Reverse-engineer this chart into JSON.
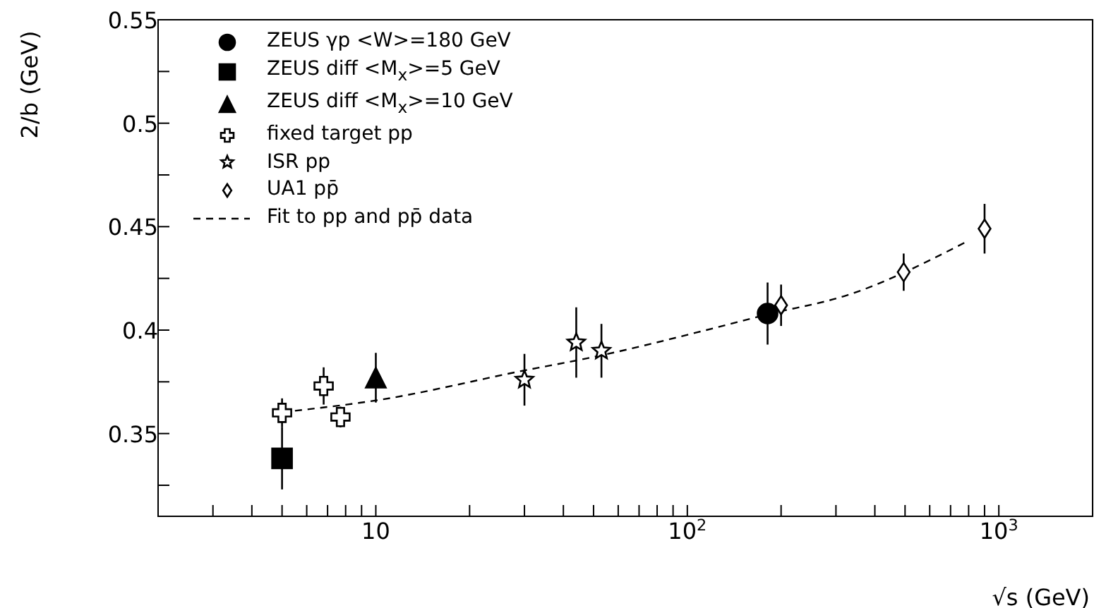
{
  "chart_data": {
    "type": "scatter",
    "xlabel": "√s (GeV)",
    "ylabel": "2/b (GeV)",
    "log": "x",
    "xlim": [
      2,
      2000
    ],
    "ylim": [
      0.31,
      0.55
    ],
    "xticks": [
      {
        "value": 2,
        "label": null
      },
      {
        "value": 3,
        "label": null
      },
      {
        "value": 4,
        "label": null
      },
      {
        "value": 5,
        "label": null
      },
      {
        "value": 6,
        "label": null
      },
      {
        "value": 7,
        "label": null
      },
      {
        "value": 8,
        "label": null
      },
      {
        "value": 9,
        "label": null
      },
      10,
      {
        "value": 20,
        "label": null
      },
      {
        "value": 30,
        "label": null
      },
      {
        "value": 40,
        "label": null
      },
      {
        "value": 50,
        "label": null
      },
      {
        "value": 60,
        "label": null
      },
      {
        "value": 70,
        "label": null
      },
      {
        "value": 80,
        "label": null
      },
      {
        "value": 90,
        "label": null
      },
      {
        "value": 100,
        "label": "10$^{2}$"
      },
      {
        "value": 200,
        "label": null
      },
      {
        "value": 300,
        "label": null
      },
      {
        "value": 400,
        "label": null
      },
      {
        "value": 500,
        "label": null
      },
      {
        "value": 600,
        "label": null
      },
      {
        "value": 700,
        "label": null
      },
      {
        "value": 800,
        "label": null
      },
      {
        "value": 900,
        "label": null
      },
      {
        "value": 1000,
        "label": "10$^{3}$"
      }
    ],
    "yticks": [
      {
        "value": 0.325,
        "label": null
      },
      0.35,
      {
        "value": 0.375,
        "label": null
      },
      0.4,
      {
        "value": 0.425,
        "label": null
      },
      0.45,
      {
        "value": 0.475,
        "label": null
      },
      0.5,
      {
        "value": 0.525,
        "label": null
      },
      0.55
    ],
    "legend": "top left",
    "series": [
      {
        "name": "ZEUS γp <W>=180 GeV",
        "color": "#000000",
        "marker": "circle",
        "x": [
          181
        ],
        "values": [
          0.408
        ],
        "errors": [
          0.015
        ]
      },
      {
        "name": "ZEUS diff <M$_{x}$>=5 GeV",
        "color": "#000000",
        "marker": "square",
        "x": [
          5
        ],
        "values": [
          0.338
        ],
        "errors": [
          0.015
        ]
      },
      {
        "name": "ZEUS diff <M$_{x}$>=10 GeV",
        "color": "#000000",
        "marker": "triangle",
        "x": [
          10
        ],
        "values": [
          0.377
        ],
        "errors": [
          0.012
        ]
      },
      {
        "name": "fixed target pp",
        "color": "#ffffff",
        "marker": "cross",
        "x": [
          5,
          6.8,
          7.7
        ],
        "values": [
          0.36,
          0.373,
          0.358
        ],
        "errors": [
          0.007,
          0.009,
          0.005
        ]
      },
      {
        "name": "ISR pp",
        "color": "#ffffff",
        "marker": "star",
        "x": [
          30,
          44,
          53
        ],
        "values": [
          0.376,
          0.394,
          0.39
        ],
        "errors": [
          0.0125,
          0.017,
          0.013
        ]
      },
      {
        "name": "UA1 pp̄",
        "color": "#ffffff",
        "marker": "diamond",
        "x": [
          200,
          495,
          900
        ],
        "values": [
          0.412,
          0.428,
          0.449
        ],
        "errors": [
          0.01,
          0.009,
          0.012
        ]
      },
      {
        "name": "Fit to pp and pp̄ data",
        "type": "line",
        "color": "#000000",
        "line_style": "dashed",
        "marker": "none",
        "x": [
          5.5,
          10,
          30,
          50,
          115,
          180,
          328,
          780
        ],
        "values": [
          0.361,
          0.366,
          0.3805,
          0.387,
          0.4,
          0.4075,
          0.417,
          0.4424
        ]
      }
    ]
  }
}
